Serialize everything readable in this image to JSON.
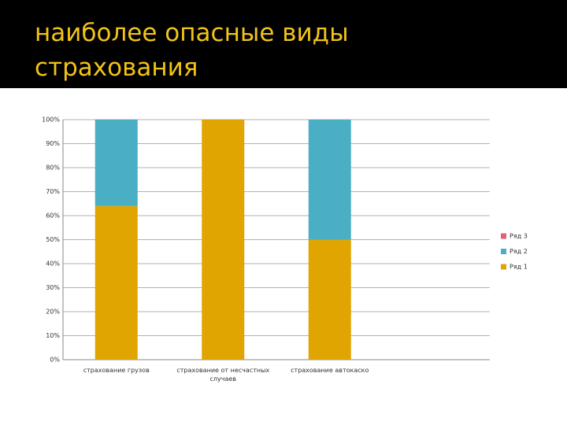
{
  "title": "наиболее опасные виды страхования",
  "chart_data": {
    "type": "stacked-bar",
    "categories": [
      "страхование грузов",
      "страхование от несчастных случаев",
      "страхование автокаско",
      null
    ],
    "series": [
      {
        "name": "Ряд 1",
        "color": "#e0a500",
        "values": [
          64,
          100,
          50,
          null
        ]
      },
      {
        "name": "Ряд 2",
        "color": "#4aaec4",
        "values": [
          36,
          0,
          50,
          null
        ]
      },
      {
        "name": "Ряд 3",
        "color": "#e0607c",
        "values": [
          0,
          0,
          0,
          null
        ]
      }
    ],
    "ylim": [
      0,
      100
    ],
    "yticks": [
      {
        "value": 0,
        "label": "0%"
      },
      {
        "value": 10,
        "label": "10%"
      },
      {
        "value": 20,
        "label": "20%"
      },
      {
        "value": 30,
        "label": "30%"
      },
      {
        "value": 40,
        "label": "40%"
      },
      {
        "value": 50,
        "label": "50%"
      },
      {
        "value": 60,
        "label": "60%"
      },
      {
        "value": 70,
        "label": "70%"
      },
      {
        "value": 80,
        "label": "80%"
      },
      {
        "value": 90,
        "label": "90%"
      },
      {
        "value": 100,
        "label": "100%"
      }
    ],
    "grid": true,
    "legend": "right"
  }
}
